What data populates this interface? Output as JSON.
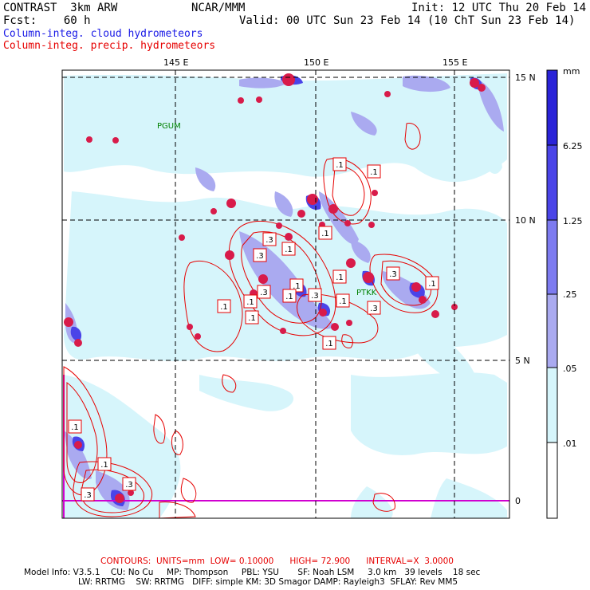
{
  "header": {
    "model": "CONTRAST  3km ARW",
    "fcst": "Fcst:    60 h",
    "center": "NCAR/MMM",
    "init": "Init: 12 UTC Thu 20 Feb 14",
    "valid": "Valid: 00 UTC Sun 23 Feb 14 (10 ChT Sun 23 Feb 14)",
    "legend_cloud": "Column-integ. cloud hydrometeors",
    "legend_precip": "Column-integ. precip. hydrometeors"
  },
  "axes": {
    "lon_labels": [
      "145 E",
      "150 E",
      "155 E"
    ],
    "lat_labels": [
      "15 N",
      "10 N",
      "5 N",
      "0"
    ]
  },
  "stations": [
    "PGUM",
    "PTKK"
  ],
  "colorbar": {
    "unit": "mm",
    "labels": [
      "6.25",
      "1.25",
      ".25",
      ".05",
      ".01"
    ],
    "colors": [
      "#2a23d8",
      "#4a44e8",
      "#7d7bf0",
      "#aaaaf0",
      "#d6f5fb",
      "#ffffff"
    ]
  },
  "contour_labels": [
    ".1",
    ".1",
    ".3",
    ".3",
    ".1",
    ".1",
    ".1",
    ".3",
    ".1",
    ".1",
    ".1",
    ".1",
    ".3",
    ".1",
    ".1",
    ".3",
    ".1",
    ".1",
    ".3",
    ".1",
    ".1",
    ".3",
    ".3"
  ],
  "footer": {
    "contours": "CONTOURS:  UNITS=mm  LOW= 0.10000      HIGH= 72.900      INTERVAL=X  3.0000",
    "model_info_1": "Model Info: V3.5.1    CU: No Cu     MP: Thompson     PBL: YSU       SF: Noah LSM     3.0 km   39 levels    18 sec",
    "model_info_2": "LW: RRTMG    SW: RRTMG   DIFF: simple KM: 3D Smagor DAMP: Rayleigh3  SFLAY: Rev MM5"
  },
  "colors": {
    "cloud_legend": "#1a1ae6",
    "precip_contour": "#e60000",
    "station": "#008000"
  }
}
